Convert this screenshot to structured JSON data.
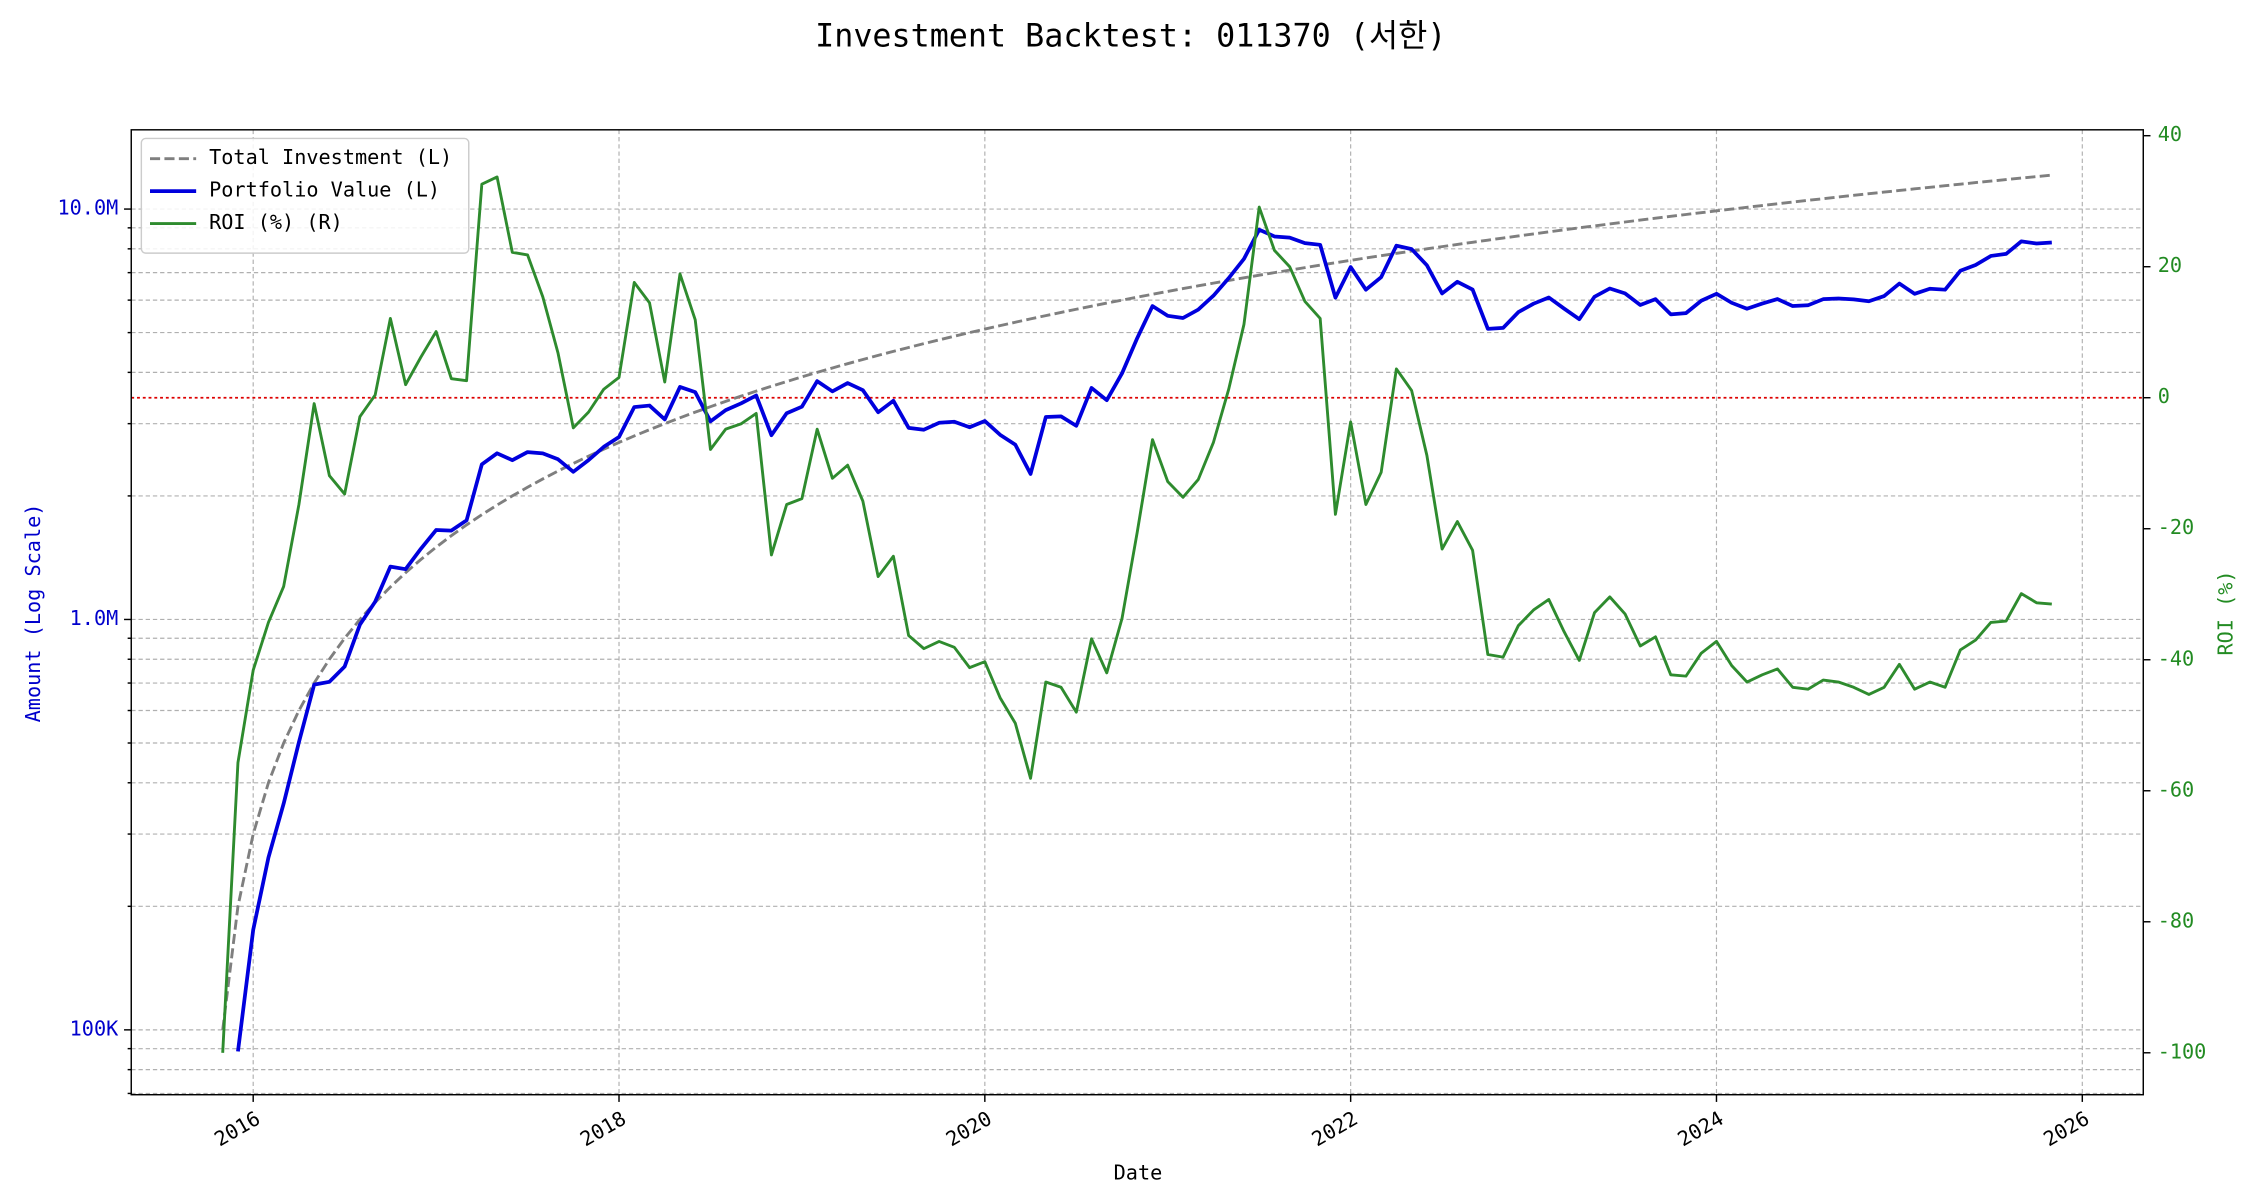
{
  "chart_data": {
    "type": "line",
    "title": "Investment Backtest: 011370 (서한)",
    "xlabel": "Date",
    "ylabel": "Amount (Log Scale)",
    "y2label": "ROI (%)",
    "ylabel_color": "#0000cc",
    "y2label_color": "#228b22",
    "yscale": "log",
    "grid": true,
    "legend": "upper left",
    "xlim": [
      "2015-05",
      "2026-05"
    ],
    "xticks": [
      {
        "value": "2016-01",
        "label": "2016"
      },
      {
        "value": "2018-01",
        "label": "2018"
      },
      {
        "value": "2020-01",
        "label": "2020"
      },
      {
        "value": "2022-01",
        "label": "2022"
      },
      {
        "value": "2024-01",
        "label": "2024"
      },
      {
        "value": "2026-01",
        "label": "2026"
      }
    ],
    "ylim": [
      69500,
      15600000
    ],
    "yticks": [
      {
        "value": 100000,
        "label": "100K"
      },
      {
        "value": 1000000,
        "label": "1.0M"
      },
      {
        "value": 10000000,
        "label": "10.0M"
      }
    ],
    "yminorticks": [
      70000,
      80000,
      90000,
      200000,
      300000,
      400000,
      500000,
      600000,
      700000,
      800000,
      900000,
      2000000,
      3000000,
      4000000,
      5000000,
      6000000,
      7000000,
      8000000,
      9000000
    ],
    "y2lim": [
      -106.4,
      40.9
    ],
    "y2ticks": [
      -100,
      -80,
      -60,
      -40,
      -20,
      0,
      20,
      40
    ],
    "reference_line": {
      "value": 0,
      "axis": "y2",
      "color": "#dd0000"
    },
    "x": [
      "2015-11",
      "2015-12",
      "2016-01",
      "2016-02",
      "2016-03",
      "2016-04",
      "2016-05",
      "2016-06",
      "2016-07",
      "2016-08",
      "2016-09",
      "2016-10",
      "2016-11",
      "2016-12",
      "2017-01",
      "2017-02",
      "2017-03",
      "2017-04",
      "2017-05",
      "2017-06",
      "2017-07",
      "2017-08",
      "2017-09",
      "2017-10",
      "2017-11",
      "2017-12",
      "2018-01",
      "2018-02",
      "2018-03",
      "2018-04",
      "2018-05",
      "2018-06",
      "2018-07",
      "2018-08",
      "2018-09",
      "2018-10",
      "2018-11",
      "2018-12",
      "2019-01",
      "2019-02",
      "2019-03",
      "2019-04",
      "2019-05",
      "2019-06",
      "2019-07",
      "2019-08",
      "2019-09",
      "2019-10",
      "2019-11",
      "2019-12",
      "2020-01",
      "2020-02",
      "2020-03",
      "2020-04",
      "2020-05",
      "2020-06",
      "2020-07",
      "2020-08",
      "2020-09",
      "2020-10",
      "2020-11",
      "2020-12",
      "2021-01",
      "2021-02",
      "2021-03",
      "2021-04",
      "2021-05",
      "2021-06",
      "2021-07",
      "2021-08",
      "2021-09",
      "2021-10",
      "2021-11",
      "2021-12",
      "2022-01",
      "2022-02",
      "2022-03",
      "2022-04",
      "2022-05",
      "2022-06",
      "2022-07",
      "2022-08",
      "2022-09",
      "2022-10",
      "2022-11",
      "2022-12",
      "2023-01",
      "2023-02",
      "2023-03",
      "2023-04",
      "2023-05",
      "2023-06",
      "2023-07",
      "2023-08",
      "2023-09",
      "2023-10",
      "2023-11",
      "2023-12",
      "2024-01",
      "2024-02",
      "2024-03",
      "2024-04",
      "2024-05",
      "2024-06",
      "2024-07",
      "2024-08",
      "2024-09",
      "2024-10",
      "2024-11",
      "2024-12",
      "2025-01",
      "2025-02",
      "2025-03",
      "2025-04",
      "2025-05",
      "2025-06",
      "2025-07",
      "2025-08",
      "2025-09",
      "2025-10",
      "2025-11"
    ],
    "series": [
      {
        "name": "Total Investment (L)",
        "color": "#7f7f7f",
        "style": "dashed",
        "width": 2,
        "axis": "y",
        "values": [
          100000,
          200000,
          300000,
          400000,
          500000,
          600000,
          700000,
          800000,
          900000,
          1000000,
          1100000,
          1200000,
          1300000,
          1400000,
          1500000,
          1600000,
          1700000,
          1800000,
          1900000,
          2000000,
          2100000,
          2200000,
          2300000,
          2400000,
          2500000,
          2600000,
          2700000,
          2800000,
          2900000,
          3000000,
          3100000,
          3200000,
          3300000,
          3400000,
          3500000,
          3600000,
          3700000,
          3800000,
          3900000,
          4000000,
          4100000,
          4200000,
          4300000,
          4400000,
          4500000,
          4600000,
          4700000,
          4800000,
          4900000,
          5000000,
          5100000,
          5200000,
          5300000,
          5400000,
          5500000,
          5600000,
          5700000,
          5800000,
          5900000,
          6000000,
          6100000,
          6200000,
          6300000,
          6400000,
          6500000,
          6600000,
          6700000,
          6800000,
          6900000,
          7000000,
          7100000,
          7200000,
          7300000,
          7400000,
          7500000,
          7600000,
          7700000,
          7800000,
          7900000,
          8000000,
          8100000,
          8200000,
          8300000,
          8400000,
          8500000,
          8600000,
          8700000,
          8800000,
          8900000,
          9000000,
          9100000,
          9200000,
          9300000,
          9400000,
          9500000,
          9600000,
          9700000,
          9800000,
          9900000,
          10000000,
          10100000,
          10200000,
          10300000,
          10400000,
          10500000,
          10600000,
          10700000,
          10800000,
          10900000,
          11000000,
          11100000,
          11200000,
          11300000,
          11400000,
          11500000,
          11600000,
          11700000,
          11800000,
          11900000,
          12000000,
          12100000
        ]
      },
      {
        "name": "Portfolio Value (L)",
        "color": "#0000dd",
        "style": "solid",
        "width": 2.6,
        "axis": "y",
        "values": [
          0,
          88600,
          175200,
          262800,
          356000,
          502200,
          693700,
          704800,
          767700,
          971000,
          1104400,
          1345200,
          1326000,
          1486800,
          1651500,
          1646400,
          1744200,
          2386800,
          2540300,
          2444000,
          2557800,
          2538800,
          2456400,
          2289600,
          2445000,
          2633800,
          2783700,
          3292800,
          3320500,
          3072000,
          3685900,
          3580800,
          3039300,
          3236800,
          3360000,
          3513600,
          2812000,
          3180600,
          3299400,
          3808000,
          3595700,
          3767400,
          3620600,
          3198800,
          3411000,
          2930200,
          2899900,
          3014400,
          3033100,
          2940000,
          3044700,
          2818400,
          2665900,
          2262600,
          3113000,
          3124800,
          2964000,
          3665600,
          3422000,
          3978000,
          4849500,
          5803200,
          5493600,
          5427200,
          5687500,
          6151200,
          6787100,
          7561600,
          8907900,
          8575000,
          8520000,
          8258400,
          8183300,
          6082800,
          7222500,
          6361200,
          6822200,
          8143200,
          7986900,
          7296000,
          6228900,
          6650200,
          6366100,
          5107200,
          5134000,
          5607200,
          5881200,
          6089600,
          5722700,
          5391000,
          6115200,
          6403200,
          6231000,
          5837400,
          6032500,
          5539200,
          5577500,
          5978000,
          6217200,
          5910000,
          5716600,
          5885400,
          6035800,
          5803200,
          5827500,
          6031400,
          6056200,
          6026400,
          5962300,
          6138000,
          6582300,
          6216000,
          6395800,
          6361200,
          7072500,
          7308000,
          7686900,
          7776200,
          8341900,
          8244000,
          8288500
        ]
      },
      {
        "name": "ROI (%) (R)",
        "color": "#2e8b2e",
        "style": "solid",
        "width": 2,
        "axis": "y2",
        "values": [
          -100,
          -55.7,
          -41.6,
          -34.3,
          -28.8,
          -16.3,
          -0.9,
          -11.9,
          -14.7,
          -2.9,
          0.4,
          12.1,
          2.0,
          6.2,
          10.1,
          2.9,
          2.6,
          32.6,
          33.7,
          22.2,
          21.8,
          15.4,
          6.8,
          -4.6,
          -2.2,
          1.3,
          3.1,
          17.6,
          14.5,
          2.4,
          18.9,
          11.9,
          -7.9,
          -4.8,
          -4.0,
          -2.4,
          -24.0,
          -16.3,
          -15.4,
          -4.8,
          -12.3,
          -10.3,
          -15.8,
          -27.3,
          -24.2,
          -36.3,
          -38.3,
          -37.2,
          -38.1,
          -41.2,
          -40.3,
          -45.8,
          -49.7,
          -58.1,
          -43.4,
          -44.2,
          -48.0,
          -36.8,
          -42.0,
          -33.7,
          -20.5,
          -6.4,
          -12.8,
          -15.2,
          -12.5,
          -6.8,
          1.3,
          11.2,
          29.1,
          22.5,
          20.0,
          14.7,
          12.1,
          -17.8,
          -3.7,
          -16.3,
          -11.4,
          4.4,
          1.1,
          -8.8,
          -23.1,
          -18.9,
          -23.3,
          -39.2,
          -39.6,
          -34.8,
          -32.4,
          -30.8,
          -35.7,
          -40.1,
          -32.8,
          -30.4,
          -33.0,
          -37.9,
          -36.5,
          -42.3,
          -42.5,
          -39.0,
          -37.2,
          -40.9,
          -43.4,
          -42.3,
          -41.4,
          -44.2,
          -44.5,
          -43.1,
          -43.4,
          -44.2,
          -45.3,
          -44.2,
          -40.7,
          -44.5,
          -43.4,
          -44.2,
          -38.5,
          -37.0,
          -34.3,
          -34.1,
          -29.9,
          -31.3,
          -31.5
        ]
      }
    ]
  }
}
